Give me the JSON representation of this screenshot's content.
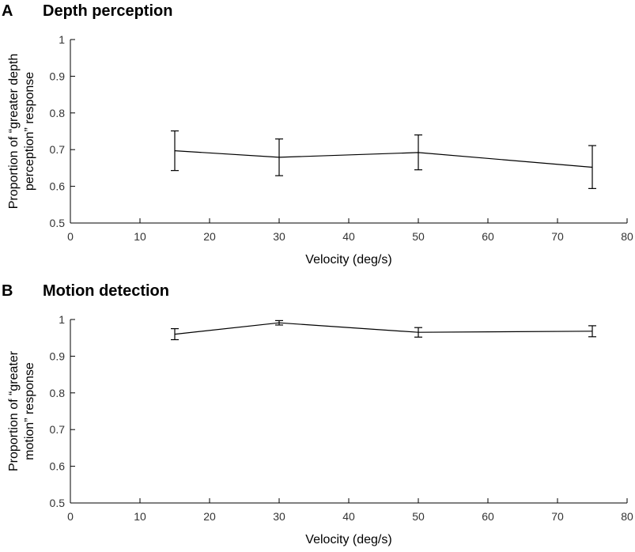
{
  "chart_data": [
    {
      "type": "line",
      "panel": "A",
      "title": "Depth perception",
      "xlabel": "Velocity (deg/s)",
      "ylabel_lines": [
        "Proportion of “greater depth",
        "perception” response"
      ],
      "xlim": [
        0,
        80
      ],
      "ylim": [
        0.5,
        1
      ],
      "xticks": [
        0,
        10,
        20,
        30,
        40,
        50,
        60,
        70,
        80
      ],
      "yticks": [
        0.5,
        0.6,
        0.7,
        0.8,
        0.9,
        1
      ],
      "ytick_labels": [
        "0.5",
        "0.6",
        "0.7",
        "0.8",
        "0.9",
        "1"
      ],
      "grid": false,
      "series": [
        {
          "name": "Depth perception",
          "x": [
            15,
            30,
            50,
            75
          ],
          "y": [
            0.697,
            0.679,
            0.692,
            0.652
          ],
          "err_low": [
            0.643,
            0.629,
            0.645,
            0.594
          ],
          "err_high": [
            0.751,
            0.729,
            0.74,
            0.711
          ]
        }
      ]
    },
    {
      "type": "line",
      "panel": "B",
      "title": "Motion detection",
      "xlabel": "Velocity (deg/s)",
      "ylabel_lines": [
        "Proportion of “greater",
        "motion” response"
      ],
      "xlim": [
        0,
        80
      ],
      "ylim": [
        0.5,
        1
      ],
      "xticks": [
        0,
        10,
        20,
        30,
        40,
        50,
        60,
        70,
        80
      ],
      "yticks": [
        0.5,
        0.6,
        0.7,
        0.8,
        0.9,
        1
      ],
      "ytick_labels": [
        "0.5",
        "0.6",
        "0.7",
        "0.8",
        "0.9",
        "1"
      ],
      "grid": false,
      "series": [
        {
          "name": "Motion detection",
          "x": [
            15,
            30,
            50,
            75
          ],
          "y": [
            0.96,
            0.991,
            0.965,
            0.968
          ],
          "err_low": [
            0.945,
            0.985,
            0.952,
            0.953
          ],
          "err_high": [
            0.975,
            0.997,
            0.978,
            0.983
          ]
        }
      ]
    }
  ]
}
